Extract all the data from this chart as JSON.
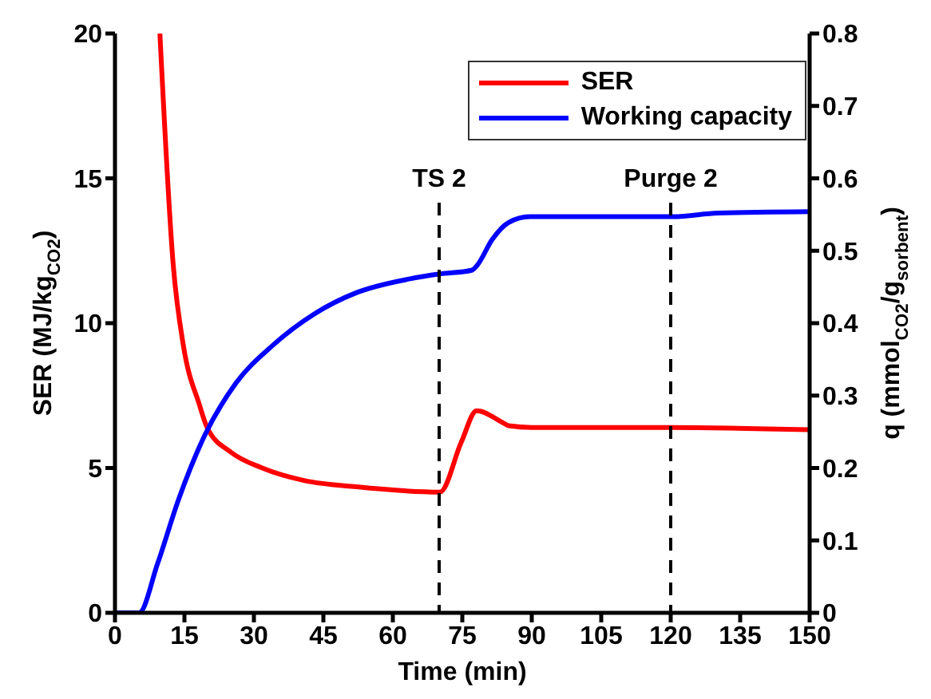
{
  "chart_data": {
    "type": "line",
    "xlabel": "Time (min)",
    "ylabel": "SER (MJ/kg$_{CO2}$)",
    "y2label": "q (mmol$_{CO2}$/g$_{sorbent}$)",
    "xlim": [
      0,
      150
    ],
    "xticks": [
      0,
      15,
      30,
      45,
      60,
      75,
      90,
      105,
      120,
      135,
      150
    ],
    "ylim": [
      0,
      20
    ],
    "yticks": [
      0,
      5,
      10,
      15,
      20
    ],
    "y2lim": [
      0,
      0.8
    ],
    "y2ticks": [
      0,
      0.1,
      0.2,
      0.3,
      0.4,
      0.5,
      0.6,
      0.7,
      0.8
    ],
    "grid": false,
    "legend": "top right",
    "marker": "none",
    "line_style": "solid",
    "series": [
      {
        "name": "SER",
        "color": "#ff0000",
        "x": [
          9.7,
          12.6,
          14.8,
          18.2,
          19.9,
          25,
          31.8,
          40.8,
          52.1,
          70.2,
          74.8,
          78.1,
          83.8,
          85,
          90,
          105,
          120,
          150
        ],
        "values": [
          20,
          11.97,
          9.2,
          7.2,
          6.4,
          5.55,
          5.0,
          4.57,
          4.35,
          4.17,
          5.9,
          6.98,
          6.56,
          6.46,
          6.4,
          6.4,
          6.4,
          6.32
        ]
      },
      {
        "name": "Working capacity",
        "color": "#0000ff",
        "axis": "y2",
        "x": [
          0,
          5.2,
          9.2,
          13.7,
          19.3,
          26.1,
          34,
          43.1,
          52.1,
          63.5,
          70.2,
          77,
          78.1,
          81.5,
          85,
          89.5,
          120.6,
          130.2,
          150
        ],
        "values": [
          0,
          0,
          0.068,
          0.156,
          0.244,
          0.317,
          0.369,
          0.413,
          0.442,
          0.461,
          0.468,
          0.473,
          0.479,
          0.516,
          0.539,
          0.547,
          0.547,
          0.552,
          0.554
        ]
      }
    ],
    "ref_lines": [
      {
        "axis": "x",
        "value": 70,
        "label": "TS 2",
        "color": "#000000",
        "line_style": "dashed"
      },
      {
        "axis": "x",
        "value": 120,
        "label": "Purge 2",
        "color": "#000000",
        "line_style": "dashed"
      }
    ]
  }
}
